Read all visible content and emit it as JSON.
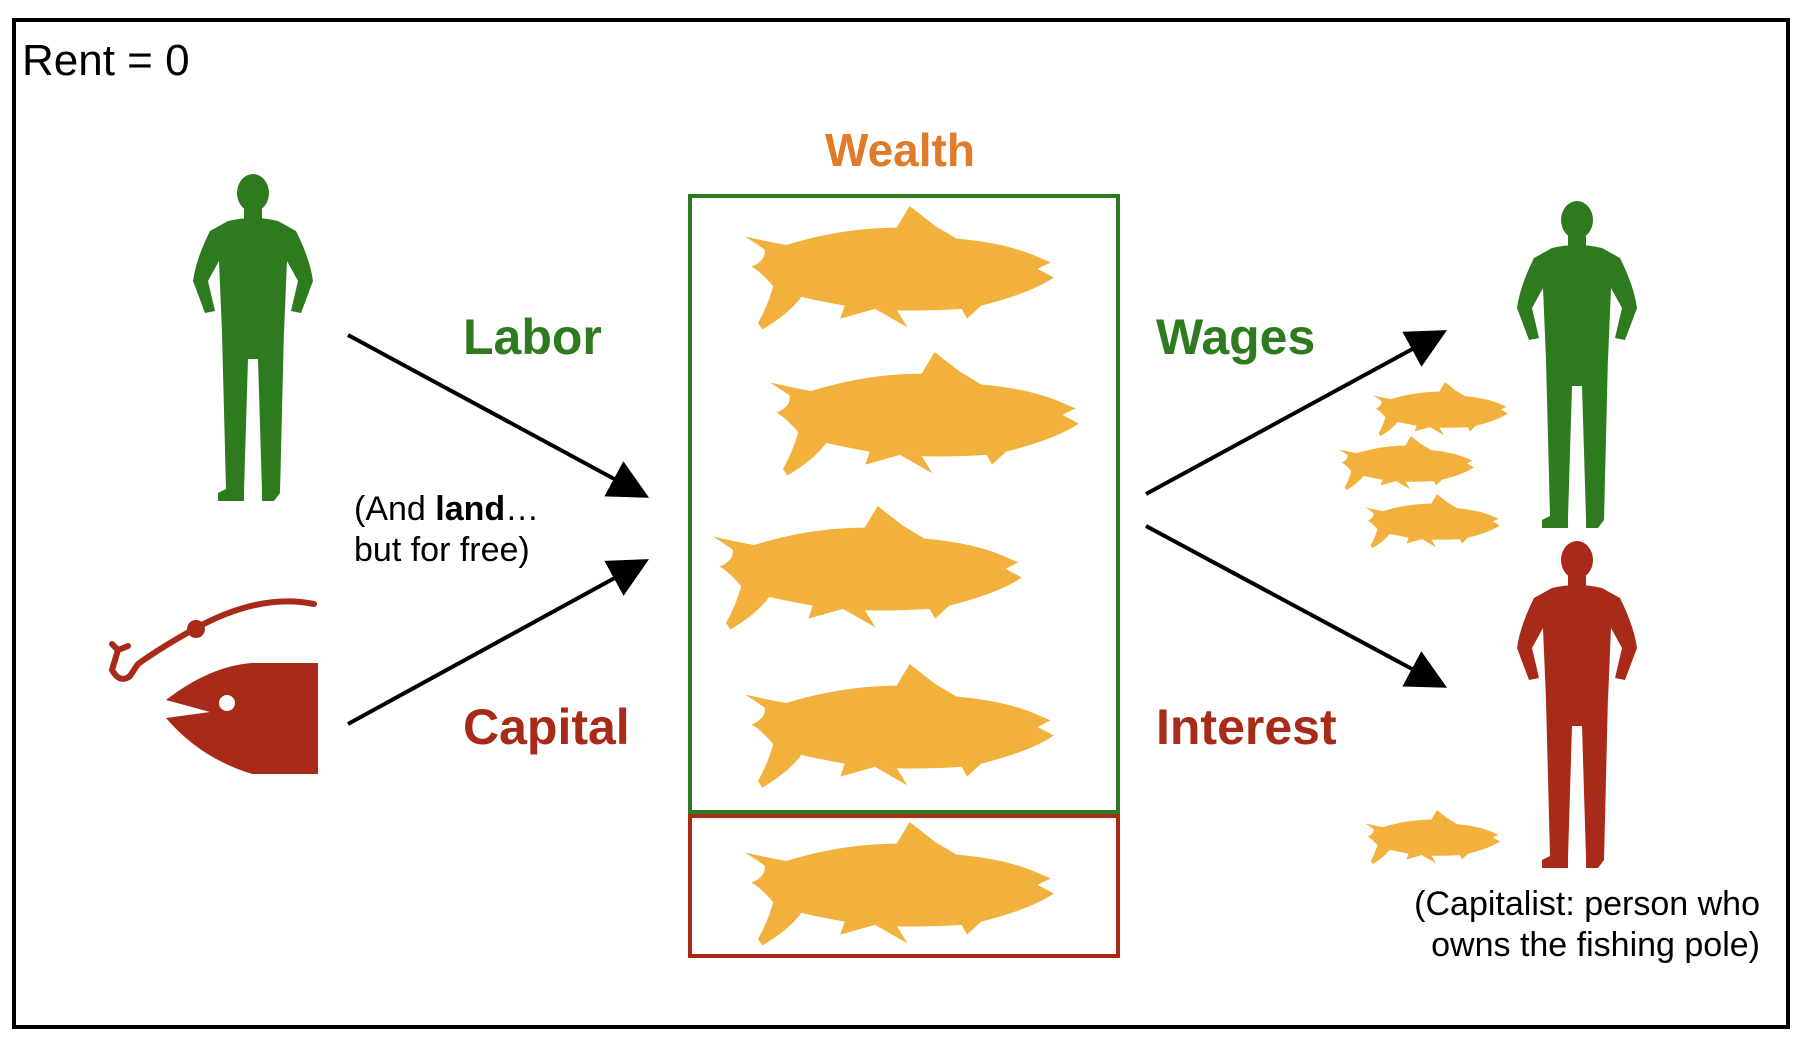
{
  "heading": "Rent = 0",
  "wealth_label": "Wealth",
  "labor_label": "Labor",
  "capital_label": "Capital",
  "wages_label": "Wages",
  "interest_label": "Interest",
  "land_note": {
    "prefix": "(And ",
    "bold": "land",
    "suffix": "…",
    "line2": "but for free)"
  },
  "capitalist_note": {
    "line1": "(Capitalist: person who",
    "line2": "owns the fishing pole)"
  },
  "colors": {
    "labor_green": "#2d7a1f",
    "capital_red": "#a82a19",
    "fish_gold": "#f1b13c",
    "wealth_orange": "#e07b2a",
    "outline": "#000000"
  },
  "icons": [
    "person-icon",
    "fishing-hook-icon",
    "fish-head-icon",
    "fish-icon",
    "arrow-icon"
  ]
}
